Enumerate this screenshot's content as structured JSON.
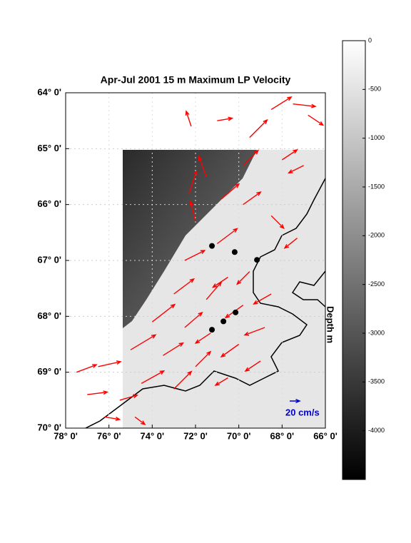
{
  "chart_data": {
    "type": "quiver",
    "title": "Apr-Jul 2001 15 m Maximum LP Velocity",
    "xlim": [
      78,
      66
    ],
    "ylim": [
      64,
      70
    ],
    "xticks": [
      {
        "value": 78,
        "label": "78° 0'"
      },
      {
        "value": 76,
        "label": "76° 0'"
      },
      {
        "value": 74,
        "label": "74° 0'"
      },
      {
        "value": 72,
        "label": "72° 0'"
      },
      {
        "value": 70,
        "label": "70° 0'"
      },
      {
        "value": 68,
        "label": "68° 0'"
      },
      {
        "value": 66,
        "label": "66° 0'"
      }
    ],
    "yticks": [
      {
        "value": 64,
        "label": "64° 0'"
      },
      {
        "value": 65,
        "label": "65° 0'"
      },
      {
        "value": 66,
        "label": "66° 0'"
      },
      {
        "value": 67,
        "label": "67° 0'"
      },
      {
        "value": 68,
        "label": "68° 0'"
      },
      {
        "value": 69,
        "label": "69° 0'"
      },
      {
        "value": 70,
        "label": "70° 0'"
      }
    ],
    "grid": true,
    "arrow_color": "#ff0000",
    "arrows": {
      "lon": [
        68.5,
        67.5,
        66.8,
        71.0,
        72.2,
        69.5,
        68.0,
        67.0,
        69.8,
        71.5,
        72.3,
        72.0,
        70.8,
        69.8,
        68.5,
        67.3,
        71.0,
        72.5,
        69.5,
        70.5,
        73.0,
        71.5,
        68.5,
        69.8,
        74.0,
        72.5,
        71.3,
        68.8,
        70.0,
        75.0,
        73.5,
        72.0,
        69.0,
        76.5,
        77.5,
        74.5,
        73.0,
        70.5,
        77.0,
        75.5,
        76.2,
        74.8
      ],
      "lat": [
        64.3,
        64.2,
        64.4,
        64.5,
        64.6,
        64.8,
        65.2,
        65.3,
        65.3,
        65.5,
        65.8,
        66.3,
        65.9,
        66.0,
        66.2,
        66.6,
        66.7,
        67.0,
        67.2,
        67.3,
        67.6,
        67.7,
        67.6,
        67.8,
        68.1,
        68.2,
        68.3,
        68.2,
        68.5,
        68.6,
        68.7,
        68.9,
        68.8,
        68.9,
        69.0,
        69.2,
        69.3,
        69.1,
        69.4,
        69.5,
        69.8,
        69.8
      ],
      "u": [
        40,
        45,
        30,
        30,
        -10,
        35,
        30,
        -30,
        30,
        -15,
        15,
        -10,
        35,
        35,
        25,
        -25,
        40,
        40,
        -25,
        -30,
        40,
        30,
        -35,
        -35,
        45,
        35,
        -30,
        -40,
        -35,
        50,
        40,
        30,
        -30,
        45,
        40,
        45,
        35,
        -25,
        40,
        35,
        30,
        20
      ],
      "v": [
        25,
        -5,
        -20,
        5,
        30,
        35,
        20,
        -15,
        30,
        40,
        45,
        40,
        30,
        25,
        -25,
        -20,
        30,
        20,
        -25,
        -20,
        30,
        35,
        -20,
        -25,
        35,
        30,
        -20,
        -15,
        -25,
        30,
        25,
        30,
        -20,
        10,
        15,
        25,
        35,
        -15,
        5,
        10,
        -5,
        -15
      ]
    },
    "stations": {
      "color": "#000000",
      "lon": [
        71.24,
        70.19,
        69.16,
        70.15,
        70.71,
        71.24
      ],
      "lat": [
        66.74,
        66.85,
        66.99,
        67.93,
        68.09,
        68.24
      ]
    },
    "scale_arrow": {
      "value": 20,
      "label": "20 cm/s",
      "color": "#0000cc"
    },
    "colorbar": {
      "label": "Depth m",
      "lim": [
        0,
        -4500
      ],
      "ticks": [
        0,
        -500,
        -1000,
        -1500,
        -2000,
        -2500,
        -3000,
        -3500,
        -4000
      ]
    }
  }
}
